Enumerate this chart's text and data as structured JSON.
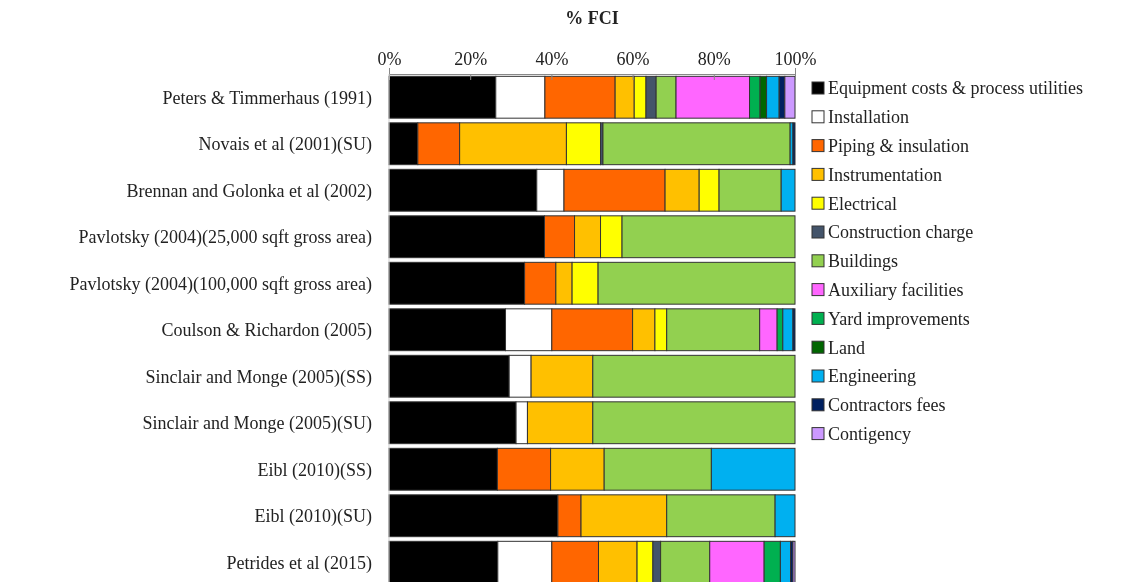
{
  "chart_data": {
    "type": "bar",
    "stacked": true,
    "orientation": "horizontal",
    "xlabel": "% FCI",
    "xlim": [
      0,
      100
    ],
    "xticks": [
      {
        "value": 0,
        "label": "0%"
      },
      {
        "value": 20,
        "label": "20%"
      },
      {
        "value": 40,
        "label": "40%"
      },
      {
        "value": 60,
        "label": "60%"
      },
      {
        "value": 80,
        "label": "80%"
      },
      {
        "value": 100,
        "label": "100%"
      }
    ],
    "grid": false,
    "legend": "right",
    "categories": [
      "Peters & Timmerhaus (1991)",
      "Novais et al (2001)(SU)",
      "Brennan and Golonka et al (2002)",
      "Pavlotsky (2004)(25,000 sqft gross area)",
      "Pavlotsky (2004)(100,000 sqft gross area)",
      "Coulson & Richardon (2005)",
      "Sinclair and Monge (2005)(SS)",
      "Sinclair and Monge (2005)(SU)",
      "Eibl (2010)(SS)",
      "Eibl (2010)(SU)",
      "Petrides et al (2015)"
    ],
    "series": [
      {
        "name": "Equipment costs & process utilities",
        "color": "#000000",
        "values": [
          26.3,
          7.1,
          36.4,
          38.3,
          33.4,
          28.7,
          29.6,
          31.3,
          26.7,
          41.6,
          26.8
        ]
      },
      {
        "name": "Installation",
        "color": "#ffffff",
        "values": [
          12.1,
          null,
          6.7,
          null,
          null,
          11.4,
          5.4,
          2.8,
          null,
          null,
          13.3
        ]
      },
      {
        "name": "Piping & insulation",
        "color": "#ff6600",
        "values": [
          17.3,
          10.3,
          24.9,
          7.4,
          7.7,
          19.9,
          null,
          null,
          13.1,
          5.7,
          11.5
        ]
      },
      {
        "name": "Instrumentation",
        "color": "#ffc000",
        "values": [
          4.7,
          26.3,
          8.4,
          6.4,
          4.0,
          5.5,
          15.2,
          16.1,
          13.2,
          21.1,
          9.5
        ]
      },
      {
        "name": "Electrical",
        "color": "#ffff00",
        "values": [
          2.9,
          8.4,
          4.9,
          5.3,
          6.4,
          2.9,
          null,
          null,
          null,
          null,
          3.9
        ]
      },
      {
        "name": "Construction charge",
        "color": "#44546a",
        "values": [
          2.5,
          0.6,
          null,
          null,
          null,
          null,
          null,
          null,
          null,
          null,
          1.9
        ]
      },
      {
        "name": "Buildings",
        "color": "#92d050",
        "values": [
          4.9,
          46.1,
          15.3,
          42.6,
          48.5,
          22.9,
          49.8,
          49.8,
          26.4,
          26.7,
          12.1
        ]
      },
      {
        "name": "Auxiliary facilities",
        "color": "#ff66ff",
        "values": [
          18.1,
          null,
          null,
          null,
          null,
          4.3,
          null,
          null,
          null,
          null,
          13.4
        ]
      },
      {
        "name": "Yard improvements",
        "color": "#00b050",
        "values": [
          2.6,
          null,
          null,
          null,
          null,
          1.4,
          null,
          null,
          null,
          null,
          4.0
        ]
      },
      {
        "name": "Land",
        "color": "#006600",
        "values": [
          1.6,
          null,
          null,
          null,
          null,
          null,
          null,
          null,
          null,
          null,
          null
        ]
      },
      {
        "name": "Engineering",
        "color": "#00b0f0",
        "values": [
          3.1,
          0.7,
          3.4,
          null,
          null,
          2.5,
          null,
          null,
          20.6,
          4.9,
          2.5
        ]
      },
      {
        "name": "Contractors fees",
        "color": "#002060",
        "values": [
          1.4,
          0.5,
          null,
          null,
          null,
          0.5,
          null,
          null,
          null,
          null,
          0.6
        ]
      },
      {
        "name": "Contigency",
        "color": "#cc99ff",
        "values": [
          2.5,
          null,
          null,
          null,
          null,
          null,
          null,
          null,
          null,
          null,
          0.5
        ]
      }
    ]
  }
}
